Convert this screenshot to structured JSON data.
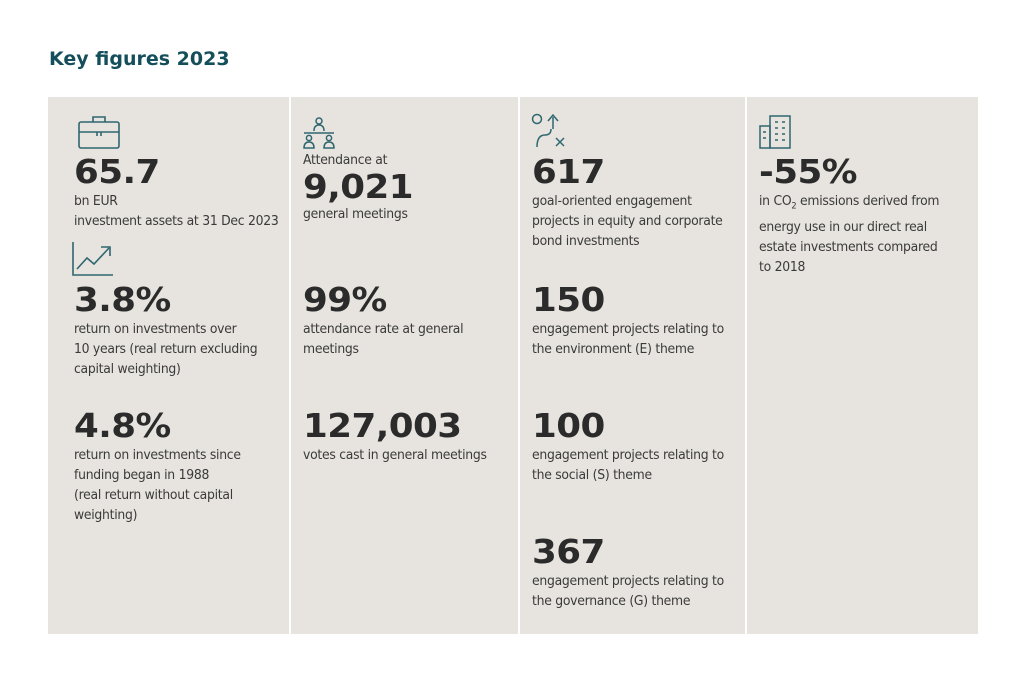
{
  "title": "Key figures 2023",
  "colors": {
    "title": "#134e5a",
    "panel": "#e7e4df",
    "icon": "#2f6670",
    "text": "#2b2b2b"
  },
  "col1": {
    "icons": [
      "briefcase-icon",
      "trending-up-chart-icon"
    ],
    "assets": {
      "value": "65.7",
      "unit": "bn EUR",
      "desc": "investment assets at 31 Dec 2023"
    },
    "return10": {
      "value": "3.8%",
      "desc": "return on investments over\n10 years (real return excluding\ncapital weighting)"
    },
    "return1988": {
      "value": "4.8%",
      "desc": "return on investments since\nfunding began in 1988\n(real return without capital\nweighting)"
    }
  },
  "col2": {
    "icons": [
      "people-meeting-icon"
    ],
    "meetings": {
      "prefix": "Attendance at",
      "value": "9,021",
      "desc": "general meetings"
    },
    "rate": {
      "value": "99%",
      "desc": "attendance rate at general\nmeetings"
    },
    "votes": {
      "value": "127,003",
      "desc": "votes cast in general meetings"
    }
  },
  "col3": {
    "icons": [
      "route-target-icon"
    ],
    "engagement": {
      "value": "617",
      "desc": "goal-oriented engagement\nprojects in equity and corporate\nbond investments"
    },
    "environment": {
      "value": "150",
      "desc": "engagement projects relating to\nthe environment (E) theme"
    },
    "social": {
      "value": "100",
      "desc": "engagement projects relating to\nthe social (S) theme"
    },
    "governance": {
      "value": "367",
      "desc": "engagement projects relating to\nthe governance (G) theme"
    }
  },
  "col4": {
    "icons": [
      "office-building-icon"
    ],
    "co2": {
      "value": "-55%",
      "desc_prefix": "in CO",
      "desc_sub": "2",
      "desc_rest": " emissions derived from\nenergy use in our direct real\nestate investments compared\nto 2018"
    }
  }
}
